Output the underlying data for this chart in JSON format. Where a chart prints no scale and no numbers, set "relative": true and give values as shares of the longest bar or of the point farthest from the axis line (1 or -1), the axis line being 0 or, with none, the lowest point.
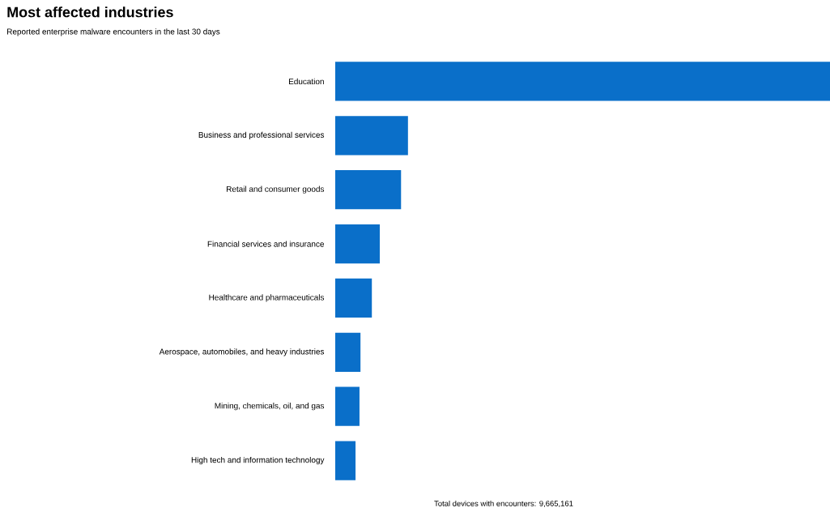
{
  "chart_data": {
    "type": "bar",
    "orientation": "horizontal",
    "relative": true,
    "title": "Most affected industries",
    "subtitle": "Reported enterprise malware encounters in the last 30 days",
    "categories": [
      "Education",
      "Business and professional services",
      "Retail and consumer goods",
      "Financial services and insurance",
      "Healthcare and pharmaceuticals",
      "Aerospace, automobiles, and heavy industries",
      "Mining, chemicals, oil, and gas",
      "High tech and information technology"
    ],
    "values": [
      1,
      0.147,
      0.133,
      0.09,
      0.074,
      0.051,
      0.049,
      0.041
    ],
    "color": "#0a6fc9",
    "annotations": [
      "Total devices with encounters: 9,665,161"
    ]
  }
}
